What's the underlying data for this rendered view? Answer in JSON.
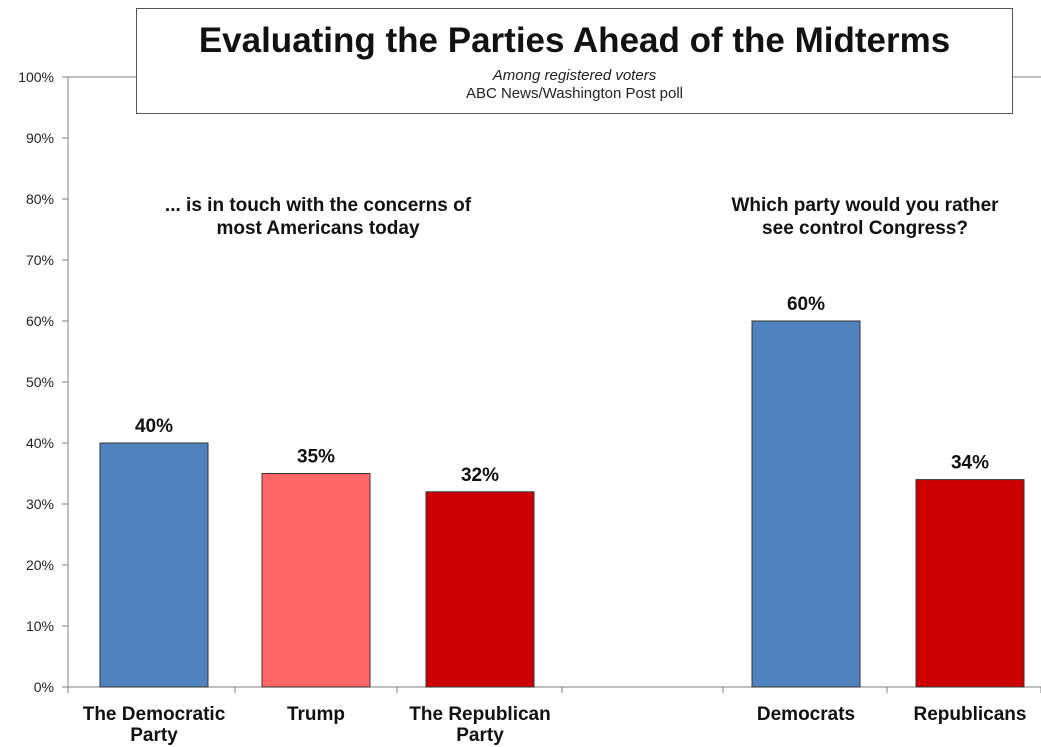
{
  "header": {
    "title": "Evaluating the Parties Ahead of the Midterms",
    "subtitle": "Among registered voters",
    "source": "ABC News/Washington  Post poll"
  },
  "chart_data": {
    "type": "bar",
    "ylim": [
      0,
      100
    ],
    "yticks": [
      "0%",
      "10%",
      "20%",
      "30%",
      "40%",
      "50%",
      "60%",
      "70%",
      "80%",
      "90%",
      "100%"
    ],
    "grid": false,
    "legend": "none",
    "groups": [
      {
        "title_lines": [
          "... is in touch with the concerns of",
          "most Americans today"
        ],
        "bars": [
          {
            "category_lines": [
              "The Democratic",
              "Party"
            ],
            "value": 40,
            "label": "40%",
            "color": "#4F81BD"
          },
          {
            "category_lines": [
              "Trump"
            ],
            "value": 35,
            "label": "35%",
            "color": "#FF6666"
          },
          {
            "category_lines": [
              "The Republican",
              "Party"
            ],
            "value": 32,
            "label": "32%",
            "color": "#CC0000"
          }
        ]
      },
      {
        "title_lines": [
          "Which party would you rather",
          "see control Congress?"
        ],
        "bars": [
          {
            "category_lines": [
              "Democrats"
            ],
            "value": 60,
            "label": "60%",
            "color": "#4F81BD"
          },
          {
            "category_lines": [
              "Republicans"
            ],
            "value": 34,
            "label": "34%",
            "color": "#CC0000"
          }
        ]
      }
    ]
  }
}
